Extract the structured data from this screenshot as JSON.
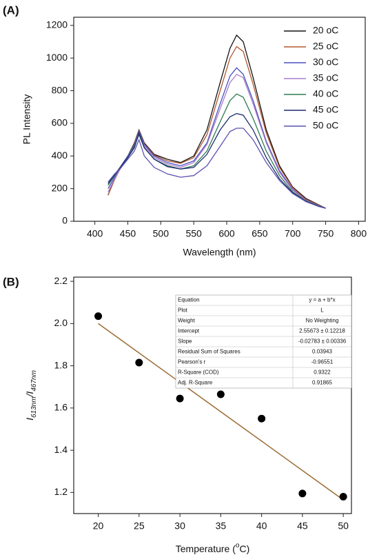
{
  "chart_data": [
    {
      "type": "line",
      "panel_label": "(A)",
      "x_label": "Wavelength (nm)",
      "y_label": "PL Intensity",
      "xlim": [
        368,
        810
      ],
      "ylim": [
        0,
        1250
      ],
      "xticks": [
        400,
        450,
        500,
        550,
        600,
        650,
        700,
        750,
        800
      ],
      "yticks": [
        0,
        200,
        400,
        600,
        800,
        1000,
        1200
      ],
      "legend": "top-right",
      "x": [
        420,
        430,
        440,
        450,
        460,
        467,
        475,
        490,
        510,
        530,
        550,
        570,
        590,
        605,
        615,
        625,
        640,
        660,
        680,
        700,
        720,
        740,
        750
      ],
      "series": [
        {
          "name": "20 oC",
          "color": "#111111",
          "values": [
            160,
            260,
            340,
            400,
            480,
            560,
            480,
            410,
            380,
            360,
            400,
            560,
            850,
            1060,
            1140,
            1100,
            880,
            560,
            340,
            210,
            140,
            100,
            80
          ]
        },
        {
          "name": "25 oC",
          "color": "#b0562c",
          "values": [
            160,
            255,
            335,
            400,
            475,
            555,
            475,
            405,
            370,
            355,
            390,
            530,
            800,
            1000,
            1070,
            1040,
            840,
            540,
            330,
            205,
            135,
            98,
            80
          ]
        },
        {
          "name": "30 oC",
          "color": "#4a4fc0",
          "values": [
            200,
            270,
            340,
            400,
            470,
            550,
            470,
            400,
            360,
            340,
            370,
            480,
            720,
            890,
            940,
            900,
            740,
            490,
            310,
            195,
            130,
            95,
            80
          ]
        },
        {
          "name": "35 oC",
          "color": "#a77cc8",
          "values": [
            180,
            260,
            330,
            390,
            460,
            540,
            460,
            390,
            350,
            330,
            360,
            470,
            690,
            850,
            900,
            880,
            720,
            480,
            300,
            190,
            128,
            95,
            80
          ]
        },
        {
          "name": "40 oC",
          "color": "#2e7a50",
          "values": [
            220,
            280,
            340,
            390,
            460,
            530,
            450,
            380,
            340,
            320,
            340,
            430,
            610,
            740,
            780,
            760,
            630,
            430,
            280,
            180,
            125,
            93,
            80
          ]
        },
        {
          "name": "45 oC",
          "color": "#1a2a6e",
          "values": [
            230,
            285,
            340,
            390,
            450,
            540,
            450,
            380,
            335,
            320,
            330,
            410,
            560,
            640,
            660,
            650,
            560,
            390,
            260,
            175,
            122,
            92,
            80
          ]
        },
        {
          "name": "50 oC",
          "color": "#5a50b0",
          "values": [
            240,
            290,
            330,
            380,
            430,
            500,
            400,
            330,
            290,
            270,
            280,
            340,
            460,
            550,
            570,
            570,
            500,
            360,
            250,
            170,
            120,
            90,
            80
          ]
        }
      ]
    },
    {
      "type": "scatter",
      "panel_label": "(B)",
      "x_label_parts": [
        "Temperature (",
        "o",
        "C)"
      ],
      "y_label_parts": [
        "I",
        "613nm",
        "/I",
        "467nm"
      ],
      "xlim": [
        17,
        51
      ],
      "ylim": [
        1.1,
        2.22
      ],
      "xticks": [
        20,
        25,
        30,
        35,
        40,
        45,
        50
      ],
      "yticks": [
        1.2,
        1.4,
        1.6,
        1.8,
        {
          "value": 2,
          "label": "2.0"
        },
        2.2
      ],
      "color": "#000000",
      "x": [
        20,
        25,
        30,
        35,
        40,
        45,
        50
      ],
      "values": [
        2.035,
        1.815,
        1.645,
        1.665,
        1.55,
        1.195,
        1.18
      ],
      "fit": {
        "color": "#9a6a30",
        "x": [
          20,
          50
        ],
        "values": [
          2.0,
          1.165
        ]
      },
      "table": {
        "rows": [
          [
            "Equation",
            "y = a + b*x"
          ],
          [
            "Plot",
            "L"
          ],
          [
            "Weight",
            "No Weighting"
          ],
          [
            "Intercept",
            "2.55673 ± 0.12218"
          ],
          [
            "Slope",
            "-0.02783 ± 0.00336"
          ],
          [
            "Residual Sum of Squares",
            "0.03943"
          ],
          [
            "Pearson's r",
            "-0.96551"
          ],
          [
            "R-Square (COD)",
            "0.9322"
          ],
          [
            "Adj. R-Square",
            "0.91865"
          ]
        ]
      }
    }
  ]
}
